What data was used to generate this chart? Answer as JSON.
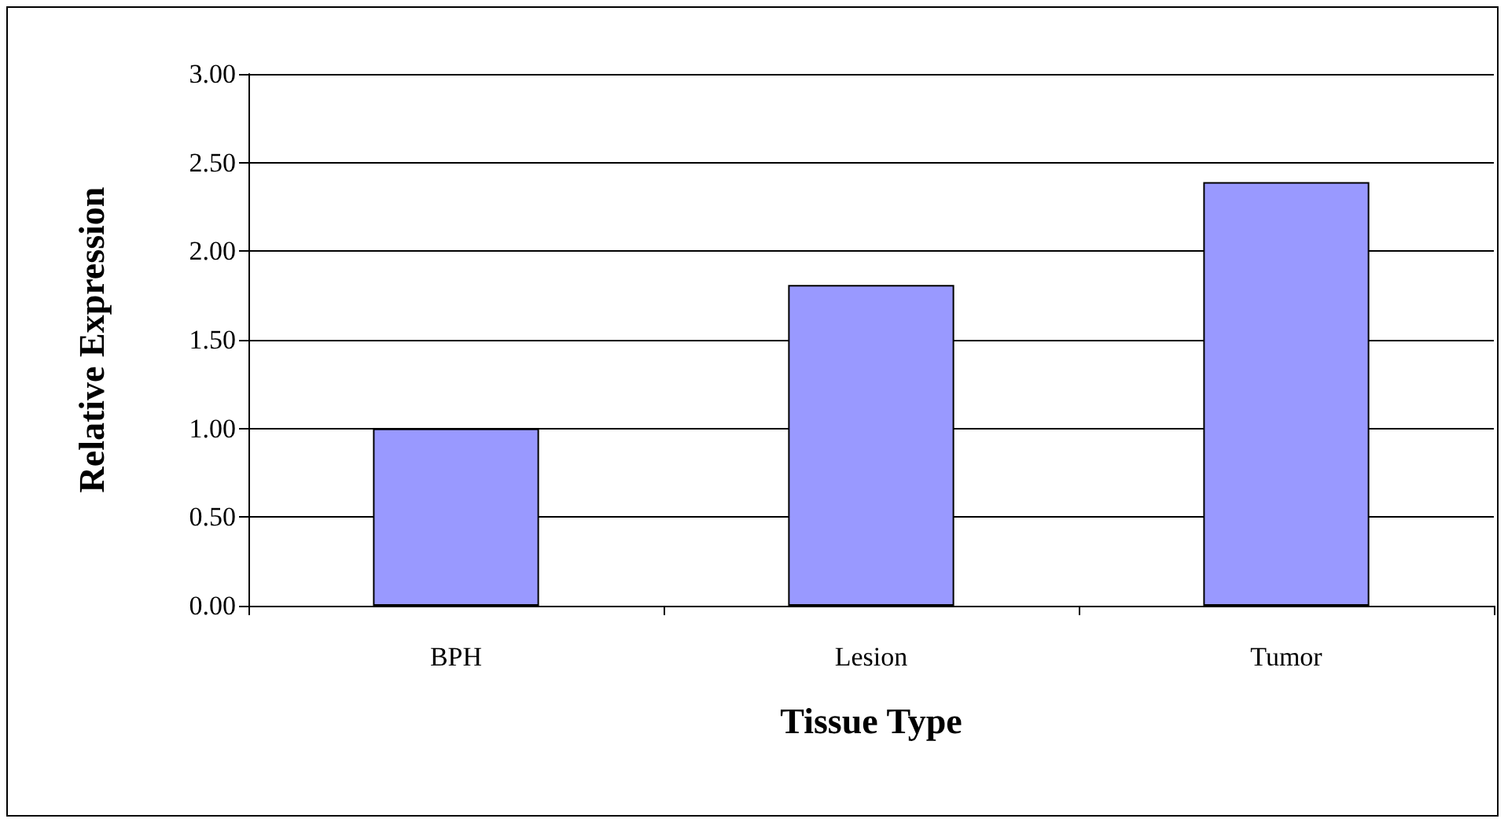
{
  "chart_data": {
    "type": "bar",
    "xlabel": "Tissue Type",
    "ylabel": "Relative Expression",
    "categories": [
      "BPH",
      "Lesion",
      "Tumor"
    ],
    "values": [
      1.0,
      1.81,
      2.39
    ],
    "color": "#9999ff",
    "ylim": [
      0,
      3
    ],
    "yticks": [
      {
        "value": 0,
        "label": "0.00"
      },
      {
        "value": 0.5,
        "label": "0.50"
      },
      {
        "value": 1,
        "label": "1.00"
      },
      {
        "value": 1.5,
        "label": "1.50"
      },
      {
        "value": 2,
        "label": "2.00"
      },
      {
        "value": 2.5,
        "label": "2.50"
      },
      {
        "value": 3,
        "label": "3.00"
      }
    ],
    "grid": "y"
  }
}
